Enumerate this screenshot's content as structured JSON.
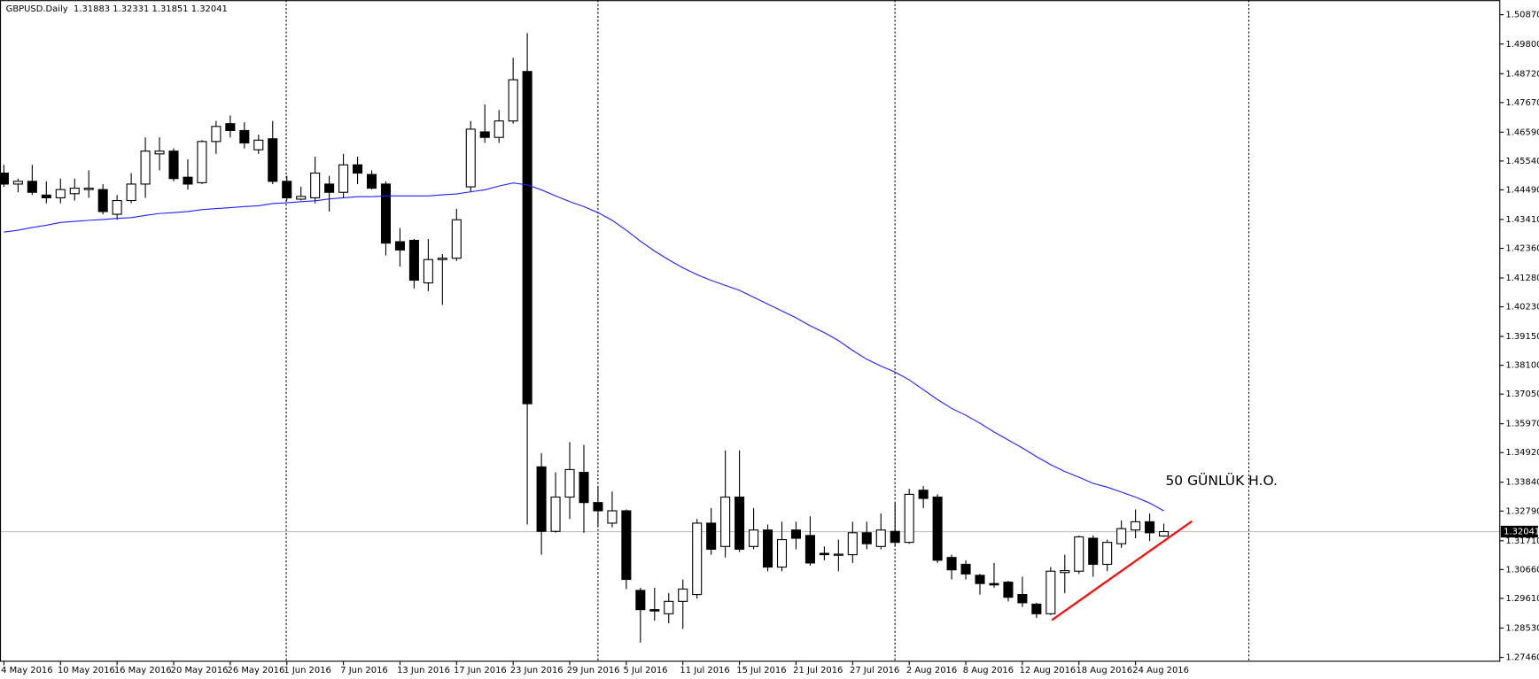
{
  "chart_data": {
    "type": "candlestick",
    "header": "GBPUSD.Daily  1.31883 1.32331 1.31851 1.32041",
    "annotation": "50 GÜNLÜK H.O.",
    "categories": [
      "4 May 2016",
      null,
      null,
      null,
      "10 May 2016",
      null,
      null,
      null,
      "16 May 2016",
      null,
      null,
      null,
      "20 May 2016",
      null,
      null,
      null,
      "26 May 2016",
      null,
      null,
      null,
      "1 Jun 2016",
      null,
      null,
      null,
      "7 Jun 2016",
      null,
      null,
      null,
      "13 Jun 2016",
      null,
      null,
      null,
      "17 Jun 2016",
      null,
      null,
      null,
      "23 Jun 2016",
      null,
      null,
      null,
      "29 Jun 2016",
      null,
      null,
      null,
      "5 Jul 2016",
      null,
      null,
      null,
      "11 Jul 2016",
      null,
      null,
      null,
      "15 Jul 2016",
      null,
      null,
      null,
      "21 Jul 2016",
      null,
      null,
      null,
      "27 Jul 2016",
      null,
      null,
      null,
      "2 Aug 2016",
      null,
      null,
      null,
      "8 Aug 2016",
      null,
      null,
      null,
      "12 Aug 2016",
      null,
      null,
      null,
      "18 Aug 2016",
      null,
      null,
      null,
      "24 Aug 2016",
      null,
      null
    ],
    "open": [
      1.451,
      1.447,
      1.448,
      1.443,
      1.442,
      1.4435,
      1.445,
      1.445,
      1.436,
      1.441,
      1.447,
      1.458,
      1.459,
      1.4495,
      1.4475,
      1.4625,
      1.469,
      1.4665,
      1.4595,
      1.4635,
      1.448,
      1.4415,
      1.442,
      1.447,
      1.444,
      1.454,
      1.4505,
      1.447,
      1.426,
      1.4265,
      1.411,
      1.4195,
      1.42,
      1.446,
      1.466,
      1.464,
      1.47,
      1.488,
      1.344,
      1.3205,
      1.333,
      1.342,
      1.331,
      1.3235,
      1.328,
      1.299,
      1.292,
      1.2905,
      1.295,
      1.2975,
      1.3235,
      1.315,
      1.333,
      1.315,
      1.321,
      1.3075,
      1.321,
      1.319,
      1.3125,
      1.3118,
      1.312,
      1.32,
      1.315,
      1.3205,
      1.3165,
      1.3355,
      1.333,
      1.311,
      1.3085,
      1.3045,
      1.3015,
      1.302,
      1.2975,
      1.294,
      1.2905,
      1.3055,
      1.306,
      1.318,
      1.3085,
      1.316,
      1.321,
      1.324,
      1.31883
    ],
    "high": [
      1.454,
      1.449,
      1.454,
      1.448,
      1.449,
      1.449,
      1.452,
      1.447,
      1.443,
      1.451,
      1.464,
      1.464,
      1.46,
      1.456,
      1.463,
      1.47,
      1.472,
      1.4695,
      1.465,
      1.47,
      1.45,
      1.446,
      1.457,
      1.45,
      1.458,
      1.457,
      1.452,
      1.448,
      1.431,
      1.427,
      1.427,
      1.4215,
      1.438,
      1.47,
      1.476,
      1.474,
      1.493,
      1.502,
      1.349,
      1.342,
      1.353,
      1.352,
      1.337,
      1.335,
      1.3285,
      1.3,
      1.3,
      1.298,
      1.303,
      1.325,
      1.329,
      1.35,
      1.35,
      1.329,
      1.323,
      1.324,
      1.324,
      1.326,
      1.315,
      1.3175,
      1.324,
      1.324,
      1.327,
      1.331,
      1.336,
      1.337,
      1.334,
      1.312,
      1.31,
      1.305,
      1.309,
      1.3025,
      1.304,
      1.2945,
      1.3075,
      1.312,
      1.319,
      1.319,
      1.3175,
      1.3245,
      1.3285,
      1.327,
      1.32331
    ],
    "low": [
      1.446,
      1.444,
      1.443,
      1.44,
      1.44,
      1.441,
      1.442,
      1.436,
      1.434,
      1.44,
      1.442,
      1.452,
      1.448,
      1.445,
      1.447,
      1.458,
      1.464,
      1.46,
      1.458,
      1.447,
      1.441,
      1.441,
      1.44,
      1.437,
      1.442,
      1.447,
      1.445,
      1.421,
      1.417,
      1.409,
      1.408,
      1.403,
      1.419,
      1.444,
      1.462,
      1.462,
      1.469,
      1.323,
      1.312,
      1.32,
      1.325,
      1.32,
      1.322,
      1.322,
      1.2995,
      1.28,
      1.288,
      1.287,
      1.285,
      1.296,
      1.312,
      1.311,
      1.313,
      1.314,
      1.306,
      1.306,
      1.314,
      1.308,
      1.31,
      1.306,
      1.309,
      1.314,
      1.314,
      1.315,
      1.316,
      1.329,
      1.309,
      1.303,
      1.303,
      1.2975,
      1.3,
      1.295,
      1.293,
      1.289,
      1.29,
      1.298,
      1.305,
      1.304,
      1.306,
      1.3145,
      1.318,
      1.317,
      1.31851
    ],
    "close": [
      1.447,
      1.448,
      1.444,
      1.442,
      1.445,
      1.4455,
      1.4455,
      1.437,
      1.441,
      1.447,
      1.459,
      1.459,
      1.449,
      1.447,
      1.4625,
      1.468,
      1.4665,
      1.462,
      1.463,
      1.448,
      1.442,
      1.4425,
      1.451,
      1.444,
      1.454,
      1.451,
      1.4455,
      1.4255,
      1.423,
      1.412,
      1.4195,
      1.42,
      1.434,
      1.467,
      1.464,
      1.47,
      1.485,
      1.367,
      1.3205,
      1.333,
      1.343,
      1.331,
      1.328,
      1.328,
      1.303,
      1.292,
      1.2915,
      1.295,
      1.2995,
      1.3235,
      1.314,
      1.333,
      1.314,
      1.321,
      1.3075,
      1.3175,
      1.318,
      1.309,
      1.312,
      1.3122,
      1.32,
      1.316,
      1.321,
      1.3165,
      1.334,
      1.3325,
      1.31,
      1.3065,
      1.305,
      1.3015,
      1.301,
      1.2965,
      1.2945,
      1.2905,
      1.306,
      1.3062,
      1.3185,
      1.3085,
      1.3165,
      1.3215,
      1.324,
      1.32,
      1.32041
    ],
    "up_color": "#ffffff",
    "down_color": "#000000",
    "ma50": {
      "color": "#2020ff",
      "values": [
        1.4295,
        1.4302,
        1.4312,
        1.432,
        1.433,
        1.4334,
        1.4338,
        1.4341,
        1.4345,
        1.4348,
        1.4356,
        1.4363,
        1.4366,
        1.437,
        1.4377,
        1.4381,
        1.4384,
        1.4388,
        1.4391,
        1.4399,
        1.4402,
        1.4406,
        1.4409,
        1.4416,
        1.442,
        1.4424,
        1.4424,
        1.4427,
        1.4427,
        1.4427,
        1.4427,
        1.4431,
        1.4434,
        1.4442,
        1.4449,
        1.4463,
        1.4474,
        1.4467,
        1.4449,
        1.4427,
        1.4406,
        1.4388,
        1.4366,
        1.4338,
        1.4302,
        1.4262,
        1.4226,
        1.4194,
        1.4165,
        1.414,
        1.4119,
        1.4101,
        1.4083,
        1.4058,
        1.4033,
        1.4008,
        1.3983,
        1.3954,
        1.3929,
        1.39,
        1.3864,
        1.3832,
        1.3807,
        1.3785,
        1.3757,
        1.3721,
        1.3685,
        1.3653,
        1.3628,
        1.3599,
        1.3567,
        1.3538,
        1.3509,
        1.3477,
        1.3448,
        1.3423,
        1.3402,
        1.338,
        1.3366,
        1.3348,
        1.333,
        1.3308,
        1.328
      ]
    },
    "last_price": 1.32041,
    "ylim": [
      1.2732,
      1.514
    ],
    "yticks": [
      {
        "value": 1.5087,
        "label": "1.50870"
      },
      {
        "value": 1.498,
        "label": "1.49800"
      },
      {
        "value": 1.4872,
        "label": "1.48720"
      },
      {
        "value": 1.4767,
        "label": "1.47670"
      },
      {
        "value": 1.4659,
        "label": "1.46590"
      },
      {
        "value": 1.4554,
        "label": "1.45540"
      },
      {
        "value": 1.4449,
        "label": "1.44490"
      },
      {
        "value": 1.4341,
        "label": "1.43410"
      },
      {
        "value": 1.4236,
        "label": "1.42360"
      },
      {
        "value": 1.4128,
        "label": "1.41280"
      },
      {
        "value": 1.4023,
        "label": "1.40230"
      },
      {
        "value": 1.3915,
        "label": "1.39150"
      },
      {
        "value": 1.381,
        "label": "1.38100"
      },
      {
        "value": 1.3705,
        "label": "1.37050"
      },
      {
        "value": 1.3597,
        "label": "1.35970"
      },
      {
        "value": 1.3492,
        "label": "1.34920"
      },
      {
        "value": 1.3384,
        "label": "1.33840"
      },
      {
        "value": 1.3279,
        "label": "1.32790"
      },
      {
        "value": 1.3171,
        "label": "1.31710"
      },
      {
        "value": 1.3066,
        "label": "1.30660"
      },
      {
        "value": 1.2961,
        "label": "1.29610"
      },
      {
        "value": 1.2853,
        "label": "1.28530"
      },
      {
        "value": 1.2746,
        "label": "1.27460"
      }
    ]
  }
}
